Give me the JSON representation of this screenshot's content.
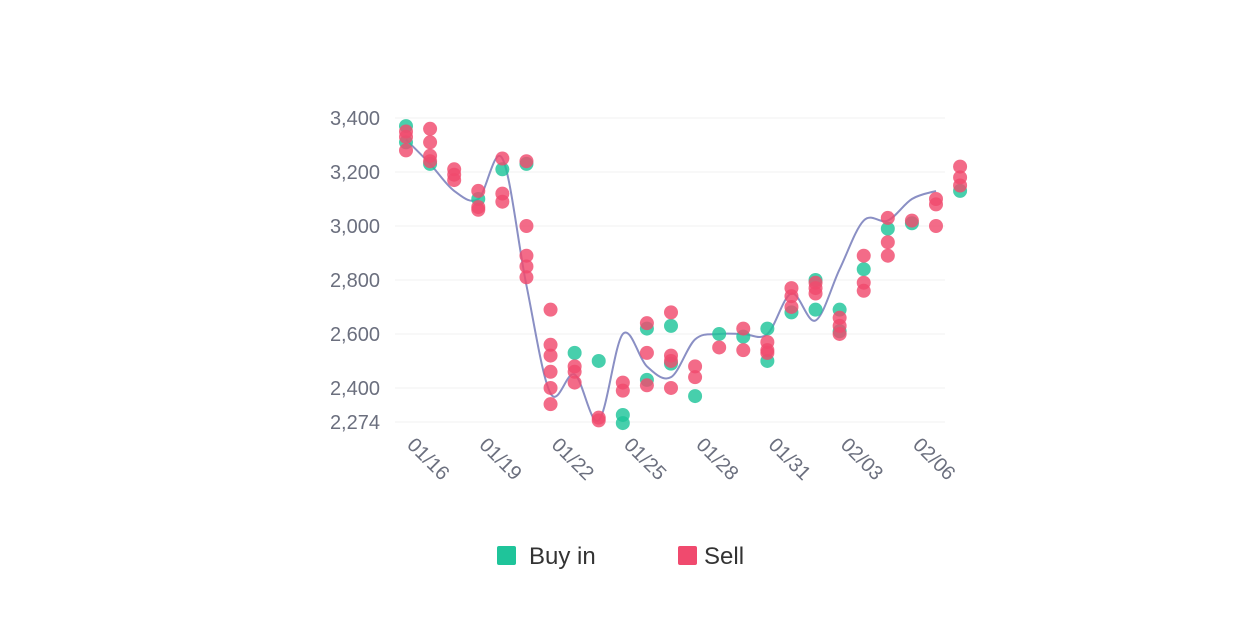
{
  "chart_data": {
    "type": "scatter",
    "title": "",
    "xlabel": "",
    "ylabel": "",
    "ylim": [
      2274,
      3400
    ],
    "y_ticks": [
      "3,400",
      "3,200",
      "3,000",
      "2,800",
      "2,600",
      "2,400",
      "2,274"
    ],
    "y_tick_values": [
      3400,
      3200,
      3000,
      2800,
      2600,
      2400,
      2274
    ],
    "x_ticks": [
      "01/16",
      "01/19",
      "01/22",
      "01/25",
      "01/28",
      "01/31",
      "02/03",
      "02/06"
    ],
    "x_tick_index": [
      0,
      3,
      6,
      9,
      12,
      15,
      18,
      21
    ],
    "x_dates": [
      "01/16",
      "01/17",
      "01/18",
      "01/19",
      "01/20",
      "01/21",
      "01/22",
      "01/23",
      "01/24",
      "01/25",
      "01/26",
      "01/27",
      "01/28",
      "01/29",
      "01/30",
      "01/31",
      "02/01",
      "02/02",
      "02/03",
      "02/04",
      "02/05",
      "02/06",
      "02/07"
    ],
    "grid": true,
    "legend_position": "bottom",
    "colors": {
      "buy": "#1fc49a",
      "sell": "#f04a6e",
      "line": "#8a8fc4"
    },
    "trend_line": [
      3320,
      3230,
      3130,
      3100,
      3250,
      2780,
      2380,
      2450,
      2280,
      2600,
      2480,
      2440,
      2580,
      2600,
      2600,
      2600,
      2750,
      2650,
      2840,
      3020,
      3020,
      3100,
      3130
    ],
    "series": [
      {
        "name": "Buy in",
        "points": [
          {
            "x": "01/16",
            "y": 3370
          },
          {
            "x": "01/16",
            "y": 3310
          },
          {
            "x": "01/17",
            "y": 3230
          },
          {
            "x": "01/19",
            "y": 3100
          },
          {
            "x": "01/20",
            "y": 3210
          },
          {
            "x": "01/21",
            "y": 3230
          },
          {
            "x": "01/23",
            "y": 2530
          },
          {
            "x": "01/24",
            "y": 2500
          },
          {
            "x": "01/25",
            "y": 2300
          },
          {
            "x": "01/25",
            "y": 2270
          },
          {
            "x": "01/26",
            "y": 2620
          },
          {
            "x": "01/26",
            "y": 2430
          },
          {
            "x": "01/27",
            "y": 2630
          },
          {
            "x": "01/27",
            "y": 2490
          },
          {
            "x": "01/28",
            "y": 2370
          },
          {
            "x": "01/29",
            "y": 2600
          },
          {
            "x": "01/30",
            "y": 2590
          },
          {
            "x": "01/31",
            "y": 2620
          },
          {
            "x": "01/31",
            "y": 2500
          },
          {
            "x": "02/01",
            "y": 2680
          },
          {
            "x": "02/02",
            "y": 2690
          },
          {
            "x": "02/02",
            "y": 2800
          },
          {
            "x": "02/03",
            "y": 2690
          },
          {
            "x": "02/03",
            "y": 2610
          },
          {
            "x": "02/04",
            "y": 2840
          },
          {
            "x": "02/05",
            "y": 2990
          },
          {
            "x": "02/06",
            "y": 3010
          },
          {
            "x": "02/08",
            "y": 3130
          }
        ]
      },
      {
        "name": "Sell",
        "points": [
          {
            "x": "01/16",
            "y": 3350
          },
          {
            "x": "01/16",
            "y": 3330
          },
          {
            "x": "01/16",
            "y": 3280
          },
          {
            "x": "01/17",
            "y": 3360
          },
          {
            "x": "01/17",
            "y": 3310
          },
          {
            "x": "01/17",
            "y": 3260
          },
          {
            "x": "01/17",
            "y": 3240
          },
          {
            "x": "01/18",
            "y": 3210
          },
          {
            "x": "01/18",
            "y": 3190
          },
          {
            "x": "01/18",
            "y": 3170
          },
          {
            "x": "01/19",
            "y": 3130
          },
          {
            "x": "01/19",
            "y": 3060
          },
          {
            "x": "01/19",
            "y": 3070
          },
          {
            "x": "01/20",
            "y": 3250
          },
          {
            "x": "01/20",
            "y": 3120
          },
          {
            "x": "01/20",
            "y": 3090
          },
          {
            "x": "01/21",
            "y": 3240
          },
          {
            "x": "01/21",
            "y": 3000
          },
          {
            "x": "01/21",
            "y": 2890
          },
          {
            "x": "01/21",
            "y": 2850
          },
          {
            "x": "01/21",
            "y": 2810
          },
          {
            "x": "01/22",
            "y": 2690
          },
          {
            "x": "01/22",
            "y": 2560
          },
          {
            "x": "01/22",
            "y": 2520
          },
          {
            "x": "01/22",
            "y": 2460
          },
          {
            "x": "01/22",
            "y": 2400
          },
          {
            "x": "01/22",
            "y": 2340
          },
          {
            "x": "01/23",
            "y": 2480
          },
          {
            "x": "01/23",
            "y": 2460
          },
          {
            "x": "01/23",
            "y": 2420
          },
          {
            "x": "01/24",
            "y": 2280
          },
          {
            "x": "01/24",
            "y": 2290
          },
          {
            "x": "01/25",
            "y": 2420
          },
          {
            "x": "01/25",
            "y": 2390
          },
          {
            "x": "01/26",
            "y": 2640
          },
          {
            "x": "01/26",
            "y": 2530
          },
          {
            "x": "01/26",
            "y": 2410
          },
          {
            "x": "01/27",
            "y": 2680
          },
          {
            "x": "01/27",
            "y": 2520
          },
          {
            "x": "01/27",
            "y": 2500
          },
          {
            "x": "01/27",
            "y": 2400
          },
          {
            "x": "01/28",
            "y": 2480
          },
          {
            "x": "01/28",
            "y": 2440
          },
          {
            "x": "01/29",
            "y": 2550
          },
          {
            "x": "01/30",
            "y": 2620
          },
          {
            "x": "01/30",
            "y": 2540
          },
          {
            "x": "01/31",
            "y": 2570
          },
          {
            "x": "01/31",
            "y": 2540
          },
          {
            "x": "01/31",
            "y": 2530
          },
          {
            "x": "02/01",
            "y": 2770
          },
          {
            "x": "02/01",
            "y": 2740
          },
          {
            "x": "02/01",
            "y": 2700
          },
          {
            "x": "02/02",
            "y": 2790
          },
          {
            "x": "02/02",
            "y": 2770
          },
          {
            "x": "02/02",
            "y": 2750
          },
          {
            "x": "02/03",
            "y": 2660
          },
          {
            "x": "02/03",
            "y": 2630
          },
          {
            "x": "02/03",
            "y": 2600
          },
          {
            "x": "02/04",
            "y": 2890
          },
          {
            "x": "02/04",
            "y": 2790
          },
          {
            "x": "02/04",
            "y": 2760
          },
          {
            "x": "02/05",
            "y": 3030
          },
          {
            "x": "02/05",
            "y": 2940
          },
          {
            "x": "02/05",
            "y": 2890
          },
          {
            "x": "02/06",
            "y": 3020
          },
          {
            "x": "02/07",
            "y": 3100
          },
          {
            "x": "02/07",
            "y": 3080
          },
          {
            "x": "02/07",
            "y": 3000
          },
          {
            "x": "02/08",
            "y": 3220
          },
          {
            "x": "02/08",
            "y": 3180
          },
          {
            "x": "02/08",
            "y": 3150
          }
        ]
      }
    ]
  }
}
